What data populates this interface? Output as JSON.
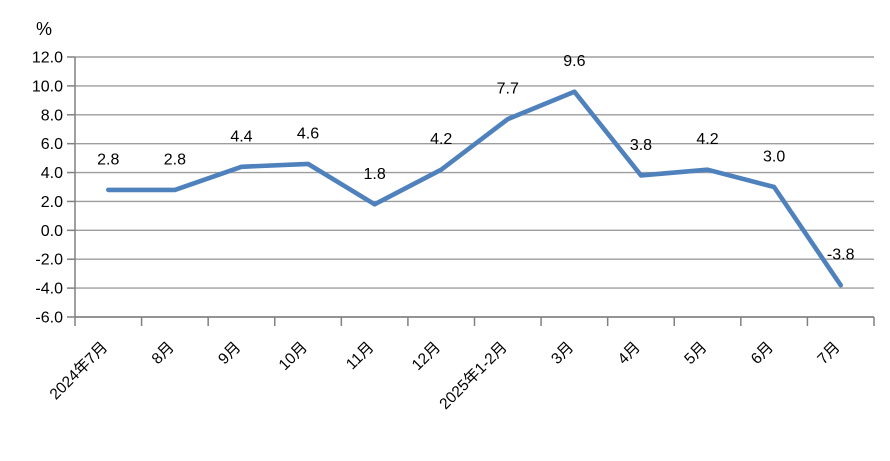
{
  "chart_data": {
    "type": "line",
    "title": "",
    "unit_label": "%",
    "categories": [
      "2024年7月",
      "8月",
      "9月",
      "10月",
      "11月",
      "12月",
      "2025年1-2月",
      "3月",
      "4月",
      "5月",
      "6月",
      "7月"
    ],
    "series": [
      {
        "name": "monthly-growth-rate",
        "values": [
          2.8,
          2.8,
          4.4,
          4.6,
          1.8,
          4.2,
          7.7,
          9.6,
          3.8,
          4.2,
          3.0,
          -3.8
        ],
        "data_labels": [
          "2.8",
          "2.8",
          "4.4",
          "4.6",
          "1.8",
          "4.2",
          "7.7",
          "9.6",
          "3.8",
          "4.2",
          "3.0",
          "-3.8"
        ]
      }
    ],
    "ylim": [
      -6.0,
      12.0
    ],
    "ytick_step": 2.0,
    "ytick_labels": [
      "12.0",
      "10.0",
      "8.0",
      "6.0",
      "4.0",
      "2.0",
      "0.0",
      "-2.0",
      "-4.0",
      "-6.0"
    ],
    "xlabel": "",
    "ylabel": "%",
    "grid": "horizontal",
    "legend": "none",
    "colors": {
      "line": "#4F81BD",
      "gridline": "#9d9d9d",
      "axis": "#808080",
      "text": "#000000",
      "background": "#ffffff"
    }
  }
}
